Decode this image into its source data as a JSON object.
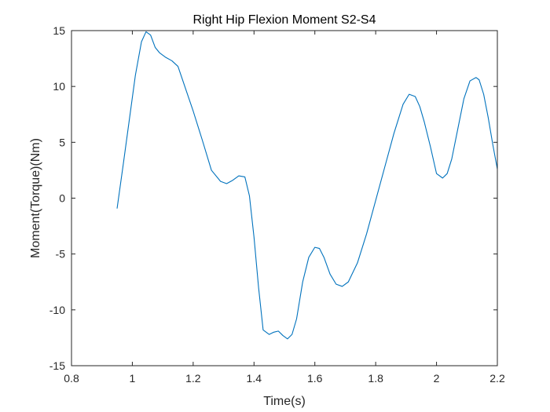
{
  "chart_data": {
    "type": "line",
    "title": "Right Hip Flexion Moment S2-S4",
    "xlabel": "Time(s)",
    "ylabel": "Moment(Torque)(Nm)",
    "xlim": [
      0.8,
      2.2
    ],
    "ylim": [
      -15,
      15
    ],
    "xticks": [
      0.8,
      1,
      1.2,
      1.4,
      1.6,
      1.8,
      2,
      2.2
    ],
    "xtick_labels": [
      "0.8",
      "1",
      "1.2",
      "1.4",
      "1.6",
      "1.8",
      "2",
      "2.2"
    ],
    "yticks": [
      -15,
      -10,
      -5,
      0,
      5,
      10,
      15
    ],
    "ytick_labels": [
      "-15",
      "-10",
      "-5",
      "0",
      "5",
      "10",
      "15"
    ],
    "grid": false,
    "box": true,
    "series": [
      {
        "color": "#0072bd",
        "x": [
          0.95,
          0.97,
          0.99,
          1.01,
          1.03,
          1.045,
          1.06,
          1.075,
          1.09,
          1.11,
          1.13,
          1.15,
          1.17,
          1.2,
          1.23,
          1.26,
          1.29,
          1.31,
          1.33,
          1.35,
          1.37,
          1.385,
          1.4,
          1.415,
          1.43,
          1.45,
          1.465,
          1.48,
          1.495,
          1.51,
          1.525,
          1.54,
          1.56,
          1.58,
          1.6,
          1.615,
          1.63,
          1.65,
          1.67,
          1.69,
          1.71,
          1.74,
          1.77,
          1.8,
          1.83,
          1.86,
          1.89,
          1.91,
          1.93,
          1.945,
          1.96,
          1.98,
          2.0,
          2.02,
          2.035,
          2.05,
          2.07,
          2.09,
          2.11,
          2.13,
          2.14,
          2.155,
          2.17,
          2.185,
          2.2
        ],
        "y": [
          -0.9,
          3.0,
          7.0,
          11.0,
          14.0,
          14.9,
          14.6,
          13.5,
          13.0,
          12.6,
          12.3,
          11.8,
          10.2,
          7.8,
          5.2,
          2.5,
          1.5,
          1.3,
          1.6,
          2.0,
          1.9,
          0.2,
          -3.5,
          -8.0,
          -11.8,
          -12.2,
          -12.0,
          -11.9,
          -12.3,
          -12.6,
          -12.2,
          -10.8,
          -7.5,
          -5.3,
          -4.4,
          -4.5,
          -5.3,
          -6.8,
          -7.7,
          -7.9,
          -7.5,
          -5.8,
          -3.2,
          -0.2,
          2.8,
          5.8,
          8.4,
          9.3,
          9.1,
          8.2,
          6.8,
          4.6,
          2.2,
          1.8,
          2.2,
          3.5,
          6.2,
          8.9,
          10.5,
          10.8,
          10.6,
          9.3,
          7.2,
          4.8,
          2.6
        ]
      }
    ]
  }
}
